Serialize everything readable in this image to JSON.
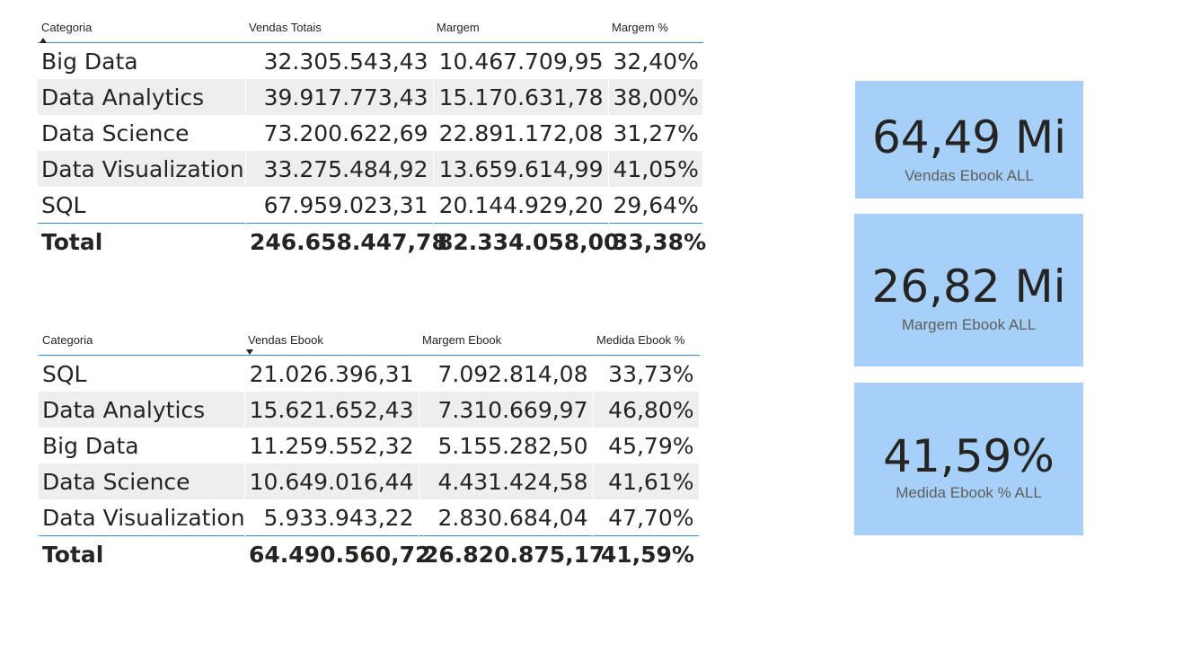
{
  "table_top": {
    "headers": [
      "Categoria",
      "Vendas Totais",
      "Margem",
      "Margem %"
    ],
    "rows": [
      [
        "Big Data",
        "32.305.543,43",
        "10.467.709,95",
        "32,40%"
      ],
      [
        "Data Analytics",
        "39.917.773,43",
        "15.170.631,78",
        "38,00%"
      ],
      [
        "Data Science",
        "73.200.622,69",
        "22.891.172,08",
        "31,27%"
      ],
      [
        "Data Visualization",
        "33.275.484,92",
        "13.659.614,99",
        "41,05%"
      ],
      [
        "SQL",
        "67.959.023,31",
        "20.144.929,20",
        "29,64%"
      ]
    ],
    "total": [
      "Total",
      "246.658.447,78",
      "82.334.058,00",
      "33,38%"
    ],
    "sort": {
      "column": 0,
      "direction": "ascending"
    }
  },
  "table_bottom": {
    "headers": [
      "Categoria",
      "Vendas Ebook",
      "Margem Ebook",
      "Medida Ebook %"
    ],
    "rows": [
      [
        "SQL",
        "21.026.396,31",
        "7.092.814,08",
        "33,73%"
      ],
      [
        "Data Analytics",
        "15.621.652,43",
        "7.310.669,97",
        "46,80%"
      ],
      [
        "Big Data",
        "11.259.552,32",
        "5.155.282,50",
        "45,79%"
      ],
      [
        "Data Science",
        "10.649.016,44",
        "4.431.424,58",
        "41,61%"
      ],
      [
        "Data Visualization",
        "5.933.943,22",
        "2.830.684,04",
        "47,70%"
      ]
    ],
    "total": [
      "Total",
      "64.490.560,72",
      "26.820.875,17",
      "41,59%"
    ],
    "sort": {
      "column": 1,
      "direction": "descending"
    }
  },
  "cards": [
    {
      "value": "64,49 Mi",
      "label": "Vendas Ebook ALL"
    },
    {
      "value": "26,82 Mi",
      "label": "Margem Ebook ALL"
    },
    {
      "value": "41,59%",
      "label": "Medida Ebook % ALL"
    }
  ],
  "colors": {
    "card_background": "#a6d0f8",
    "header_rule": "#2f8fd8",
    "alt_row": "#eeeeee",
    "text": "#252423",
    "label_text": "#605e5c"
  }
}
